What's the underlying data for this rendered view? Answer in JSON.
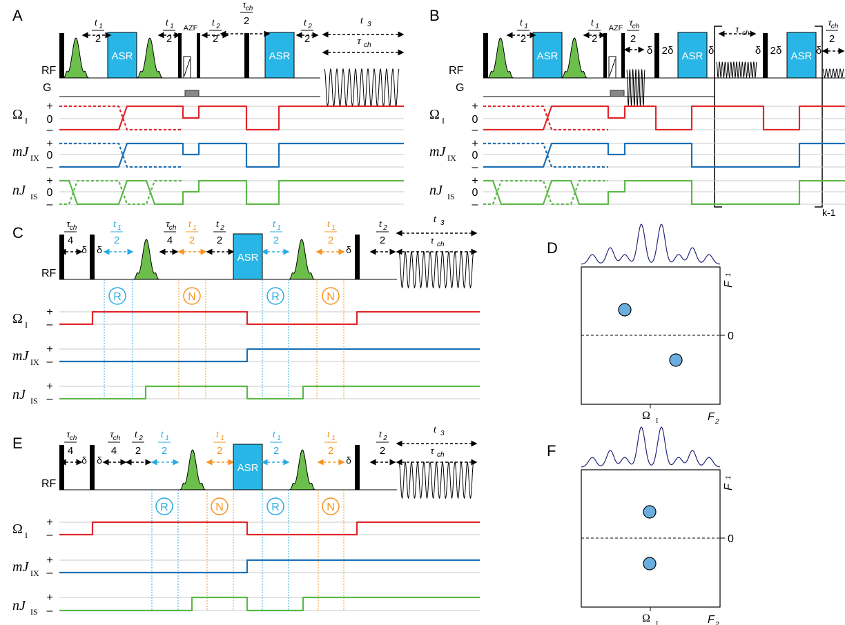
{
  "panels": {
    "A": "A",
    "B": "B",
    "C": "C",
    "D": "D",
    "E": "E",
    "F": "F"
  },
  "row_labels": {
    "rf": "RF",
    "g": "G",
    "omega_main": "Ω",
    "omega_sub": "I",
    "mj_main": "mJ",
    "mj_sub": "IX",
    "nj_main": "nJ",
    "nj_sub": "IS"
  },
  "levels": {
    "plus": "+",
    "zero": "0",
    "minus": "–"
  },
  "pulse_labels": {
    "asr": "ASR",
    "azf": "AZF"
  },
  "timing": {
    "t1": "t",
    "t1_sub": "1",
    "t2": "t",
    "t2_sub": "2",
    "t3": "t",
    "t3_sub": "3",
    "tau": "τ",
    "tau_sub": "ch",
    "half": "2",
    "quarter": "4",
    "delta": "δ",
    "two_delta": "2δ",
    "k_minus_1": "k-1"
  },
  "filters": {
    "r": "R",
    "n": "N"
  },
  "spectra": {
    "f1_main": "F",
    "f1_sub": "1",
    "f2_main": "F",
    "f2_sub": "2",
    "zero": "0",
    "omega_main": "Ω",
    "omega_sub": "I"
  },
  "colors": {
    "omega": "#e0262b",
    "mj": "#1a6fb5",
    "nj": "#5cb848",
    "asr": "#29b6e6",
    "r_filter": "#29abe2",
    "n_filter": "#f7931e",
    "shaped": "#6cbf4b",
    "peak": "#6aaee0",
    "trace": "#23237a"
  }
}
